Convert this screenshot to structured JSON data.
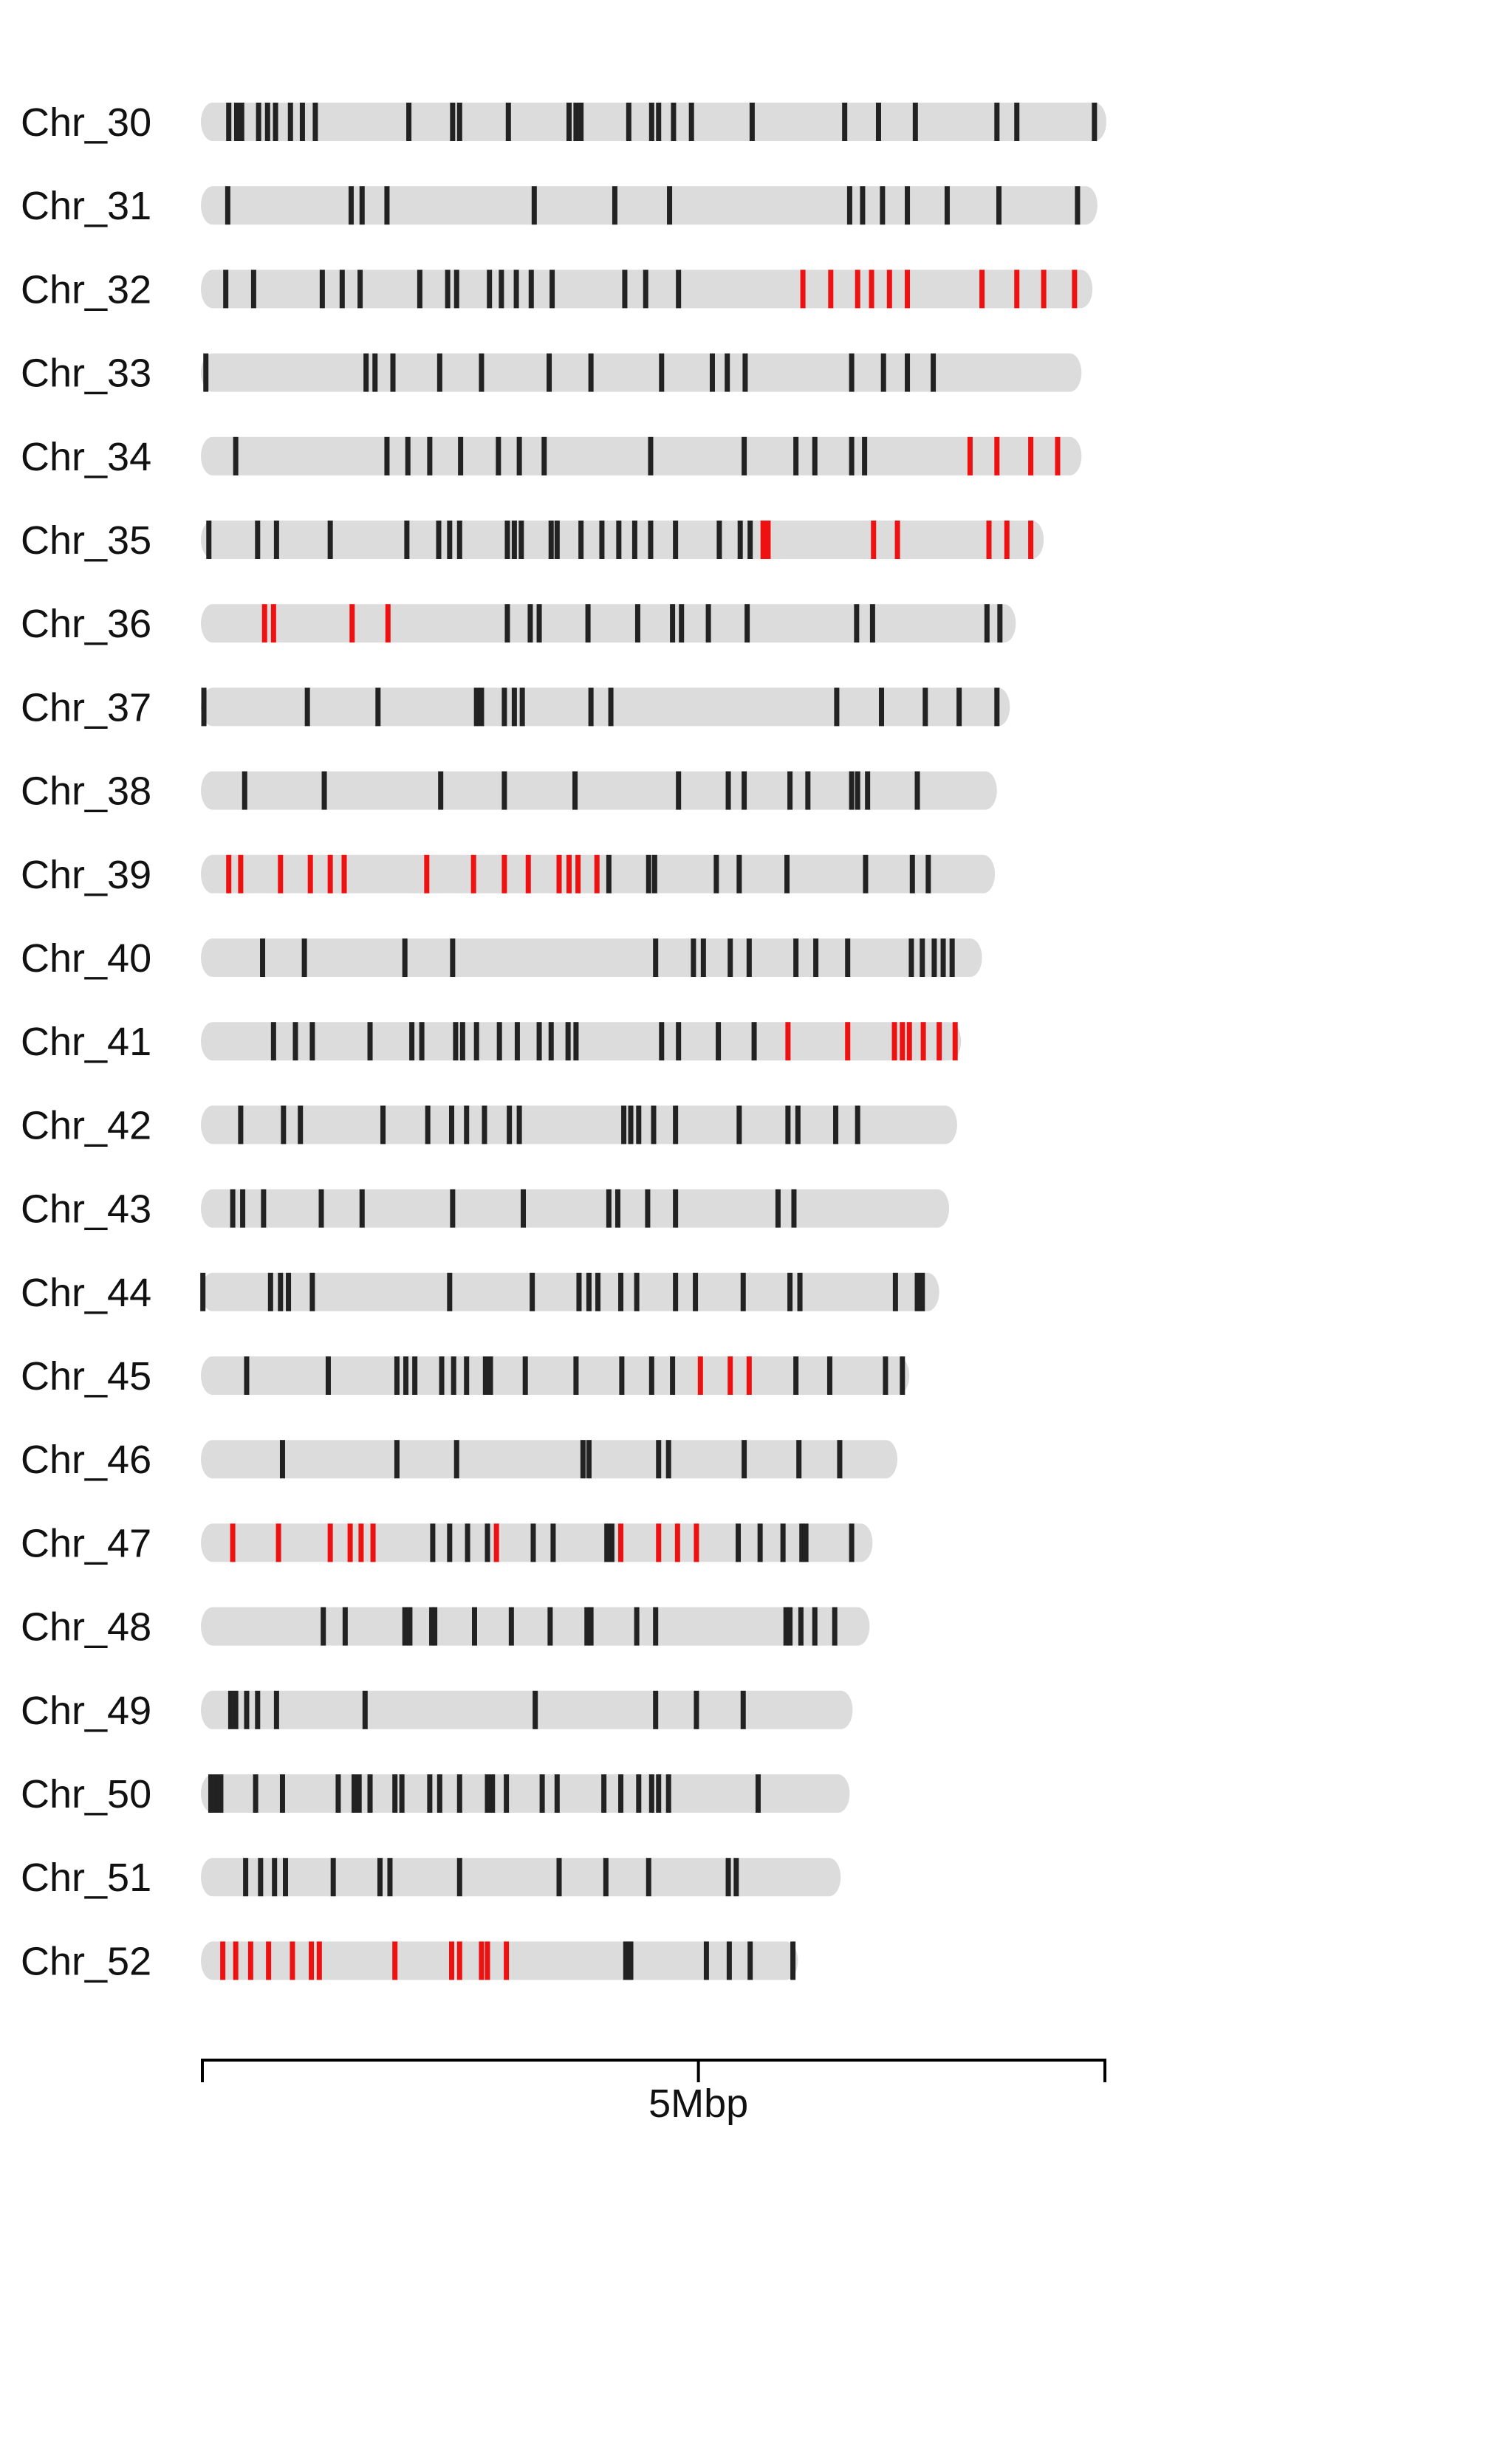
{
  "chart_data": {
    "type": "chromosome-ideogram",
    "units": "Mbp",
    "scale": {
      "max": 9.1,
      "tick_value": 5,
      "tick_label": "5Mbp"
    },
    "colors": {
      "background": "#ffffff",
      "chromosome": "#dcdcdc",
      "marker": "#222222",
      "highlight": "#ee1111",
      "axis": "#000000"
    },
    "chromosomes": [
      {
        "name": "Chr_30",
        "length": 9.1,
        "markers": [
          0.28,
          0.36,
          0.41,
          0.58,
          0.67,
          0.75,
          0.9,
          1.02,
          1.15,
          2.09,
          2.53,
          2.6,
          3.09,
          3.7,
          3.77,
          3.82,
          4.3,
          4.53,
          4.6,
          4.75,
          4.93,
          5.54,
          6.47,
          6.81,
          7.18,
          8.0,
          8.2,
          8.98
        ],
        "highlights": []
      },
      {
        "name": "Chr_31",
        "length": 9.01,
        "markers": [
          0.27,
          1.51,
          1.62,
          1.87,
          3.35,
          4.16,
          4.71,
          6.52,
          6.65,
          6.85,
          7.1,
          7.5,
          8.02,
          8.81
        ],
        "highlights": []
      },
      {
        "name": "Chr_32",
        "length": 8.96,
        "markers": [
          0.25,
          0.53,
          1.22,
          1.42,
          1.6,
          2.2,
          2.48,
          2.57,
          2.9,
          3.02,
          3.17,
          3.32,
          3.53,
          4.26,
          4.47,
          4.8
        ],
        "highlights": [
          6.05,
          6.33,
          6.6,
          6.74,
          6.92,
          7.1,
          7.85,
          8.2,
          8.47,
          8.78
        ]
      },
      {
        "name": "Chr_33",
        "length": 8.85,
        "markers": [
          0.05,
          1.66,
          1.75,
          1.93,
          2.4,
          2.82,
          3.5,
          3.92,
          4.63,
          5.14,
          5.29,
          5.47,
          6.54,
          6.86,
          7.1,
          7.36
        ],
        "highlights": []
      },
      {
        "name": "Chr_34",
        "length": 8.85,
        "markers": [
          0.35,
          1.87,
          2.08,
          2.3,
          2.61,
          2.99,
          3.2,
          3.45,
          4.52,
          5.46,
          5.98,
          6.17,
          6.54,
          6.67
        ],
        "highlights": [
          7.73,
          8.0,
          8.34,
          8.61
        ]
      },
      {
        "name": "Chr_35",
        "length": 8.47,
        "markers": [
          0.08,
          0.57,
          0.76,
          1.3,
          2.07,
          2.39,
          2.5,
          2.6,
          3.08,
          3.15,
          3.22,
          3.52,
          3.58,
          3.82,
          4.03,
          4.2,
          4.36,
          4.52,
          4.77,
          5.21,
          5.42,
          5.52
        ],
        "highlights": [
          5.65,
          5.7,
          6.76,
          7.0,
          7.92,
          8.1,
          8.34
        ]
      },
      {
        "name": "Chr_36",
        "length": 8.19,
        "markers": [
          3.08,
          3.31,
          3.4,
          3.89,
          4.39,
          4.74,
          4.83,
          5.1,
          5.49,
          6.59,
          6.75,
          7.9,
          8.03
        ],
        "highlights": [
          0.64,
          0.73,
          1.52,
          1.88
        ]
      },
      {
        "name": "Chr_37",
        "length": 8.13,
        "markers": [
          0.03,
          1.07,
          1.78,
          2.77,
          2.82,
          3.05,
          3.15,
          3.23,
          3.92,
          4.12,
          6.39,
          6.84,
          7.28,
          7.62,
          8.0
        ],
        "highlights": []
      },
      {
        "name": "Chr_38",
        "length": 8.0,
        "markers": [
          0.44,
          1.24,
          2.41,
          3.05,
          3.76,
          4.8,
          5.3,
          5.46,
          5.92,
          6.1,
          6.54,
          6.6,
          6.7,
          7.2
        ],
        "highlights": []
      },
      {
        "name": "Chr_39",
        "length": 7.98,
        "markers": [
          4.1,
          4.5,
          4.56,
          5.18,
          5.41,
          5.89,
          6.68,
          7.15,
          7.31
        ],
        "highlights": [
          0.28,
          0.4,
          0.8,
          1.1,
          1.3,
          1.44,
          2.27,
          2.74,
          3.05,
          3.29,
          3.6,
          3.7,
          3.79,
          3.98
        ]
      },
      {
        "name": "Chr_40",
        "length": 7.85,
        "markers": [
          0.62,
          1.04,
          2.05,
          2.53,
          4.57,
          4.95,
          5.05,
          5.32,
          5.51,
          5.98,
          6.18,
          6.5,
          7.14,
          7.25,
          7.37,
          7.46,
          7.55
        ],
        "highlights": []
      },
      {
        "name": "Chr_41",
        "length": 7.64,
        "markers": [
          0.73,
          0.95,
          1.12,
          1.7,
          2.12,
          2.22,
          2.56,
          2.63,
          2.77,
          3.0,
          3.18,
          3.4,
          3.52,
          3.69,
          3.77,
          4.63,
          4.8,
          5.2,
          5.56
        ],
        "highlights": [
          5.9,
          6.5,
          6.97,
          7.05,
          7.12,
          7.26,
          7.42,
          7.58
        ]
      },
      {
        "name": "Chr_42",
        "length": 7.6,
        "markers": [
          0.4,
          0.83,
          1.0,
          1.83,
          2.28,
          2.52,
          2.67,
          2.85,
          3.1,
          3.2,
          4.25,
          4.32,
          4.4,
          4.55,
          4.77,
          5.41,
          5.9,
          6.0,
          6.38,
          6.6
        ],
        "highlights": []
      },
      {
        "name": "Chr_43",
        "length": 7.52,
        "markers": [
          0.32,
          0.42,
          0.63,
          1.21,
          1.62,
          2.53,
          3.24,
          4.1,
          4.19,
          4.49,
          4.77,
          5.8,
          5.96
        ],
        "highlights": []
      },
      {
        "name": "Chr_44",
        "length": 7.42,
        "markers": [
          0.02,
          0.7,
          0.8,
          0.88,
          1.12,
          2.5,
          3.33,
          3.8,
          3.9,
          3.99,
          4.22,
          4.38,
          4.77,
          4.97,
          5.45,
          5.92,
          6.02,
          6.98,
          7.2,
          7.25
        ],
        "highlights": []
      },
      {
        "name": "Chr_45",
        "length": 7.12,
        "markers": [
          0.46,
          1.28,
          1.97,
          2.06,
          2.15,
          2.42,
          2.54,
          2.67,
          2.86,
          2.91,
          3.26,
          3.77,
          4.23,
          4.53,
          4.74,
          5.98,
          6.32,
          6.88,
          7.05
        ],
        "highlights": [
          5.02,
          5.32,
          5.51
        ]
      },
      {
        "name": "Chr_46",
        "length": 7.0,
        "markers": [
          0.82,
          1.97,
          2.57,
          3.84,
          3.9,
          4.6,
          4.7,
          5.46,
          6.01,
          6.42
        ],
        "highlights": []
      },
      {
        "name": "Chr_47",
        "length": 6.75,
        "markers": [
          2.33,
          2.5,
          2.68,
          2.88,
          3.34,
          3.54,
          4.08,
          4.13,
          5.4,
          5.62,
          5.85,
          6.04,
          6.08,
          6.54
        ],
        "highlights": [
          0.32,
          0.78,
          1.3,
          1.5,
          1.61,
          1.73,
          2.97,
          4.22,
          4.6,
          4.79,
          4.98
        ]
      },
      {
        "name": "Chr_48",
        "length": 6.72,
        "markers": [
          1.23,
          1.45,
          2.05,
          2.1,
          2.32,
          2.35,
          2.75,
          3.12,
          3.51,
          3.88,
          3.92,
          4.38,
          4.57,
          5.88,
          5.92,
          6.03,
          6.17,
          6.37
        ],
        "highlights": []
      },
      {
        "name": "Chr_49",
        "length": 6.55,
        "markers": [
          0.3,
          0.35,
          0.46,
          0.57,
          0.76,
          1.65,
          3.36,
          4.57,
          4.98,
          5.45
        ],
        "highlights": []
      },
      {
        "name": "Chr_50",
        "length": 6.52,
        "markers": [
          0.1,
          0.15,
          0.2,
          0.55,
          0.82,
          1.38,
          1.54,
          1.59,
          1.7,
          1.95,
          2.02,
          2.3,
          2.4,
          2.6,
          2.88,
          2.93,
          3.07,
          3.43,
          3.58,
          4.05,
          4.22,
          4.4,
          4.53,
          4.6,
          4.7,
          5.6
        ],
        "highlights": []
      },
      {
        "name": "Chr_51",
        "length": 6.43,
        "markers": [
          0.45,
          0.6,
          0.74,
          0.85,
          1.33,
          1.8,
          1.9,
          2.6,
          3.6,
          4.07,
          4.5,
          5.3,
          5.38
        ],
        "highlights": []
      },
      {
        "name": "Chr_52",
        "length": 6.0,
        "markers": [
          4.27,
          4.32,
          5.08,
          5.31,
          5.52,
          5.95
        ],
        "highlights": [
          0.22,
          0.35,
          0.5,
          0.68,
          0.92,
          1.11,
          1.19,
          1.95,
          2.52,
          2.6,
          2.82,
          2.88,
          3.07
        ]
      }
    ]
  }
}
